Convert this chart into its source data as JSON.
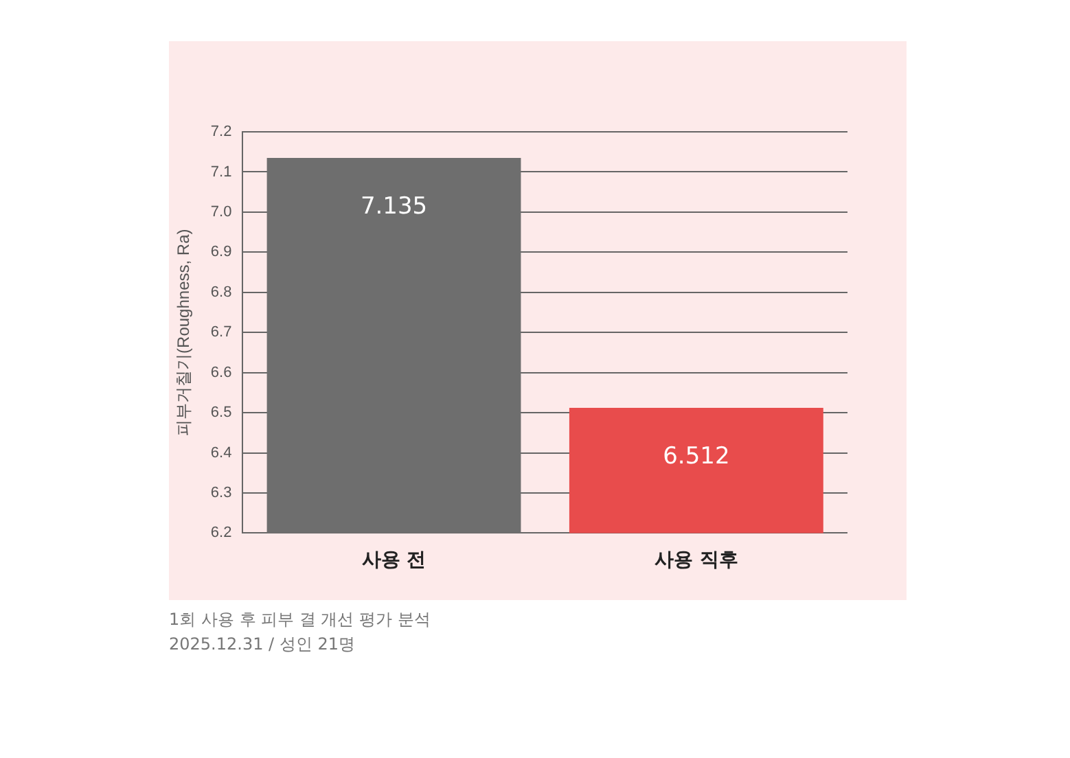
{
  "chart_data": {
    "type": "bar",
    "ylabel": "피부거칠기(Roughness, Ra)",
    "categories": [
      "사용 전",
      "사용 직후"
    ],
    "values": [
      7.135,
      6.512
    ],
    "colors": [
      "#6e6e6e",
      "#e84c4c"
    ],
    "ylim": [
      6.2,
      7.2
    ],
    "yticks": [
      6.2,
      6.3,
      6.4,
      6.5,
      6.6,
      6.7,
      6.8,
      6.9,
      {
        "value": 7,
        "label": "7.0"
      },
      7.1,
      7.2
    ],
    "grid": "y",
    "data_labels": true,
    "legend": false,
    "annotations": [
      "1회 사용 후 피부 결 개선 평가 분석",
      "2025.12.31 / 성인 21명"
    ]
  }
}
